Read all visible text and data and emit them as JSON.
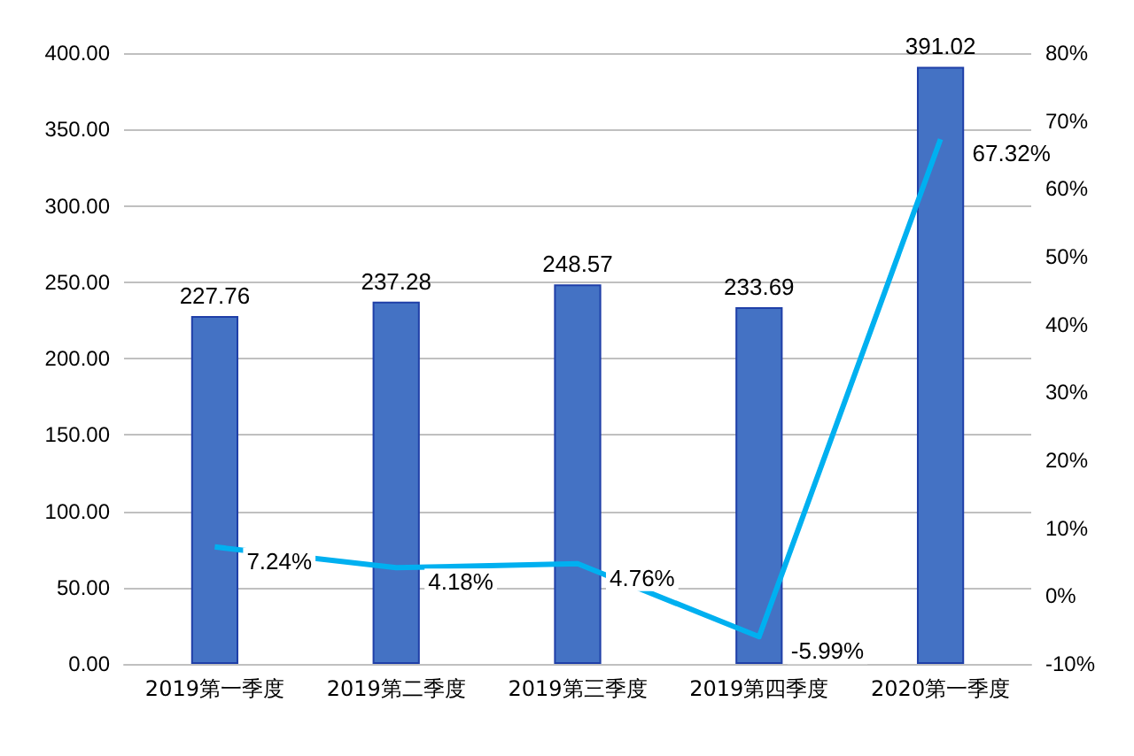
{
  "chart_data": {
    "type": "bar",
    "categories": [
      "2019第一季度",
      "2019第二季度",
      "2019第三季度",
      "2019第四季度",
      "2020第一季度"
    ],
    "series": [
      {
        "color": "#4472c4",
        "values": [
          227.76,
          237.28,
          248.57,
          233.69,
          391.02
        ],
        "value_labels": [
          "227.76",
          "237.28",
          "248.57",
          "233.69",
          "391.02"
        ]
      },
      {
        "type": "line",
        "axis": "y2",
        "color": "#00b0f0",
        "values": [
          7.24,
          4.18,
          4.76,
          -5.99,
          67.32
        ],
        "value_labels": [
          "7.24%",
          "4.18%",
          "4.76%",
          "-5.99%",
          "67.32%"
        ]
      }
    ],
    "ylim": [
      0,
      400
    ],
    "yticks": [
      {
        "value": 0,
        "label": "0.00"
      },
      {
        "value": 50,
        "label": "50.00"
      },
      {
        "value": 100,
        "label": "100.00"
      },
      {
        "value": 150,
        "label": "150.00"
      },
      {
        "value": 200,
        "label": "200.00"
      },
      {
        "value": 250,
        "label": "250.00"
      },
      {
        "value": 300,
        "label": "300.00"
      },
      {
        "value": 350,
        "label": "350.00"
      },
      {
        "value": 400,
        "label": "400.00"
      }
    ],
    "y2lim": [
      -10,
      80
    ],
    "y2ticks": [
      {
        "value": -10,
        "label": "-10%"
      },
      {
        "value": 0,
        "label": "0%"
      },
      {
        "value": 10,
        "label": "10%"
      },
      {
        "value": 20,
        "label": "20%"
      },
      {
        "value": 30,
        "label": "30%"
      },
      {
        "value": 40,
        "label": "40%"
      },
      {
        "value": 50,
        "label": "50%"
      },
      {
        "value": 60,
        "label": "60%"
      },
      {
        "value": 70,
        "label": "70%"
      },
      {
        "value": 80,
        "label": "80%"
      }
    ],
    "grid": "y",
    "marker": "none"
  }
}
